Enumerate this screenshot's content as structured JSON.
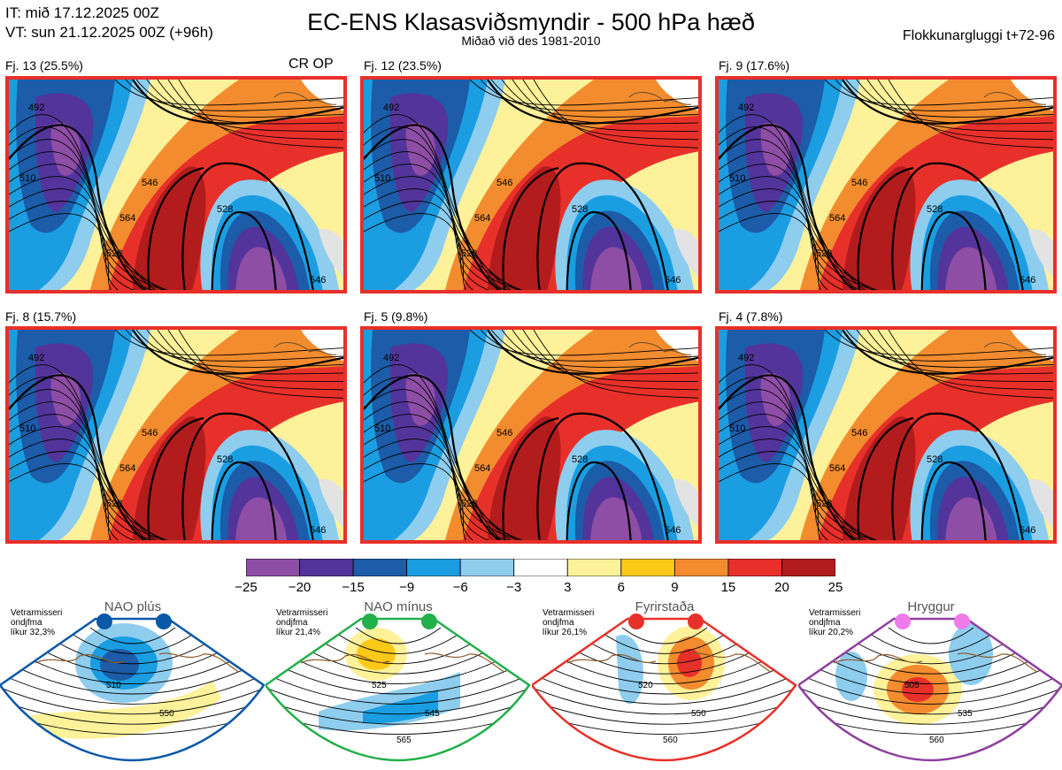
{
  "header": {
    "init_time": "IT: mið 17.12.2025 00Z",
    "valid_time": "VT: sun 21.12.2025 00Z  (+96h)",
    "title": "EC-ENS Klasasviðsmyndir - 500 hPa hæð",
    "subtitle": "Miðað við des 1981-2010",
    "window": "Flokkunargluggi t+72-96"
  },
  "colors": {
    "frame": "#e8302a",
    "scale": [
      "#8e4ea5",
      "#53349a",
      "#1c5ca8",
      "#1a9ee1",
      "#8ecdee",
      "#ffffff",
      "#fdf19a",
      "#fbc918",
      "#f28c2e",
      "#e8302a",
      "#b31c1c"
    ]
  },
  "panels": [
    {
      "caption": "Fj. 13 (25.5%)",
      "tag": "CR OP",
      "contours": [
        "492",
        "510",
        "528",
        "546",
        "564",
        "528",
        "546"
      ]
    },
    {
      "caption": "Fj. 12 (23.5%)",
      "tag": "",
      "contours": [
        "492",
        "510",
        "528",
        "546",
        "564",
        "528",
        "546"
      ]
    },
    {
      "caption": "Fj. 9 (17.6%)",
      "tag": "",
      "contours": [
        "492",
        "510",
        "528",
        "546",
        "564",
        "528",
        "546"
      ]
    },
    {
      "caption": "Fj. 8 (15.7%)",
      "tag": "",
      "contours": [
        "492",
        "510",
        "528",
        "546",
        "564",
        "528",
        "546"
      ]
    },
    {
      "caption": "Fj. 5 (9.8%)",
      "tag": "",
      "contours": [
        "492",
        "510",
        "528",
        "546",
        "564",
        "528",
        "546"
      ]
    },
    {
      "caption": "Fj. 4 (7.8%)",
      "tag": "",
      "contours": [
        "492",
        "510",
        "528",
        "546",
        "564",
        "528",
        "546"
      ]
    }
  ],
  "regimes": [
    {
      "name": "NAO plús",
      "season": "Vetrarmisseri",
      "type": "ondjfma",
      "prob": "líkur 32,3%",
      "dot": "#0b58a8",
      "border": "#0b58a8",
      "labels": [
        "510",
        "550"
      ]
    },
    {
      "name": "NAO mínus",
      "season": "Vetrarmisseri",
      "type": "ondjfma",
      "prob": "líkur 21,4%",
      "dot": "#22b04a",
      "border": "#22b04a",
      "labels": [
        "525",
        "545",
        "565"
      ]
    },
    {
      "name": "Fyrirstaða",
      "season": "Vetrarmisseri",
      "type": "ondjfma",
      "prob": "líkur 26,1%",
      "dot": "#e8302a",
      "border": "#e8302a",
      "labels": [
        "520",
        "550",
        "560"
      ]
    },
    {
      "name": "Hryggur",
      "season": "Vetrarmisseri",
      "type": "ondjfma",
      "prob": "líkur 20,2%",
      "dot": "#ee7be8",
      "border": "#8e3f9e",
      "labels": [
        "505",
        "535",
        "560"
      ]
    }
  ],
  "chart_data": {
    "type": "heatmap",
    "title": "EC-ENS Klasasviðsmyndir - 500 hPa hæð",
    "colorbar_ticks": [
      "−25",
      "−20",
      "−15",
      "−9",
      "−6",
      "−3",
      "3",
      "6",
      "9",
      "15",
      "20",
      "25"
    ],
    "colorbar_values": [
      -25,
      -20,
      -15,
      -9,
      -6,
      -3,
      3,
      6,
      9,
      15,
      20,
      25
    ],
    "clusters": [
      {
        "name": "Fj. 13",
        "probability": 25.5
      },
      {
        "name": "Fj. 12",
        "probability": 23.5
      },
      {
        "name": "Fj. 9",
        "probability": 17.6
      },
      {
        "name": "Fj. 8",
        "probability": 15.7
      },
      {
        "name": "Fj. 5",
        "probability": 9.8
      },
      {
        "name": "Fj. 4",
        "probability": 7.8
      }
    ],
    "regimes": [
      {
        "name": "NAO plús",
        "probability": 32.3
      },
      {
        "name": "NAO mínus",
        "probability": 21.4
      },
      {
        "name": "Fyrirstaða",
        "probability": 26.1
      },
      {
        "name": "Hryggur",
        "probability": 20.2
      }
    ]
  }
}
